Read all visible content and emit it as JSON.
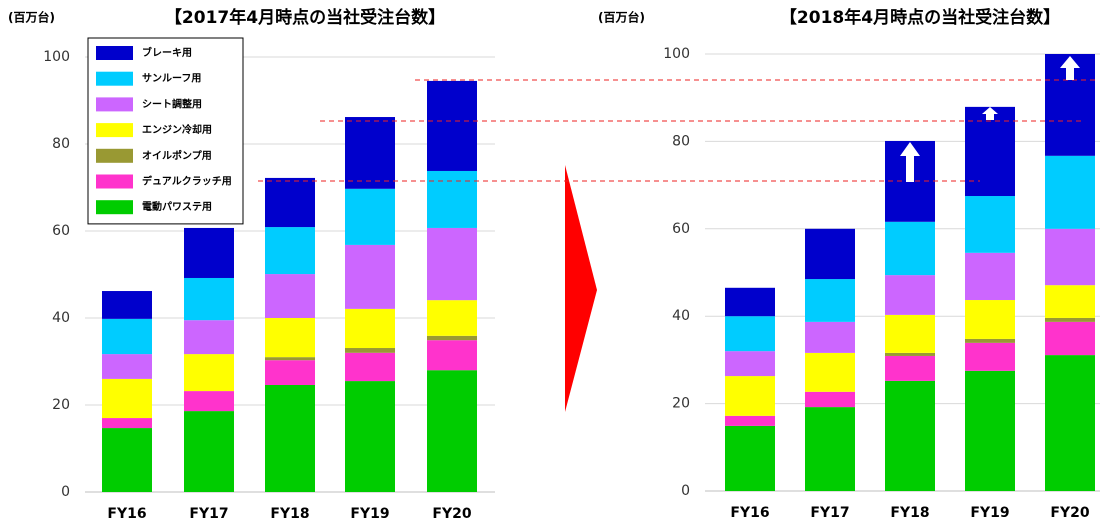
{
  "chart_data": [
    {
      "type": "stacked_bar",
      "title": "【2017年4月時点の当社受注台数】",
      "ylabel": "(百万台)",
      "categories": [
        "FY16",
        "FY17",
        "FY18",
        "FY19",
        "FY20"
      ],
      "ylim": [
        0,
        100
      ],
      "yticks": [
        0,
        20,
        40,
        60,
        80,
        100
      ],
      "grid": true,
      "legend": "upper left",
      "series": [
        {
          "name": "電動パワステ用",
          "color": "#00cc00",
          "values": [
            14.7,
            18.6,
            24.6,
            25.5,
            28.0
          ]
        },
        {
          "name": "デュアルクラッチ用",
          "color": "#ff33cc",
          "values": [
            2.3,
            4.6,
            5.7,
            6.5,
            6.9
          ]
        },
        {
          "name": "オイルポンプ用",
          "color": "#999933",
          "values": [
            0,
            0,
            0.7,
            1.1,
            1.0
          ]
        },
        {
          "name": "エンジン冷却用",
          "color": "#ffff00",
          "values": [
            9.0,
            8.5,
            9.0,
            9.0,
            8.2
          ]
        },
        {
          "name": "シート調整用",
          "color": "#cc66ff",
          "values": [
            5.7,
            7.8,
            10.1,
            14.7,
            16.6
          ]
        },
        {
          "name": "サンルーフ用",
          "color": "#00ccff",
          "values": [
            8.1,
            9.7,
            10.8,
            12.9,
            13.1
          ]
        },
        {
          "name": "ブレーキ用",
          "color": "#0000cc",
          "values": [
            6.4,
            11.5,
            11.3,
            16.5,
            20.7
          ]
        }
      ]
    },
    {
      "type": "stacked_bar",
      "title": "【2018年4月時点の当社受注台数】",
      "ylabel": "(百万台)",
      "categories": [
        "FY16",
        "FY17",
        "FY18",
        "FY19",
        "FY20"
      ],
      "ylim": [
        0,
        100
      ],
      "yticks": [
        0,
        20,
        40,
        60,
        80,
        100
      ],
      "grid": true,
      "series": [
        {
          "color": "#00cc00",
          "values": [
            14.9,
            19.2,
            25.2,
            27.5,
            31.1
          ]
        },
        {
          "color": "#ff33cc",
          "values": [
            2.3,
            3.5,
            5.7,
            6.4,
            7.6
          ]
        },
        {
          "color": "#999933",
          "values": [
            0,
            0,
            0.7,
            0.9,
            0.9
          ]
        },
        {
          "color": "#ffff00",
          "values": [
            9.1,
            8.9,
            8.7,
            8.9,
            7.5
          ]
        },
        {
          "color": "#cc66ff",
          "values": [
            5.7,
            7.1,
            9.1,
            10.8,
            12.9
          ]
        },
        {
          "color": "#00ccff",
          "values": [
            8.0,
            9.8,
            12.2,
            13.0,
            16.7
          ]
        },
        {
          "color": "#0000cc",
          "values": [
            6.5,
            11.5,
            18.5,
            20.4,
            23.3
          ]
        }
      ]
    }
  ]
}
